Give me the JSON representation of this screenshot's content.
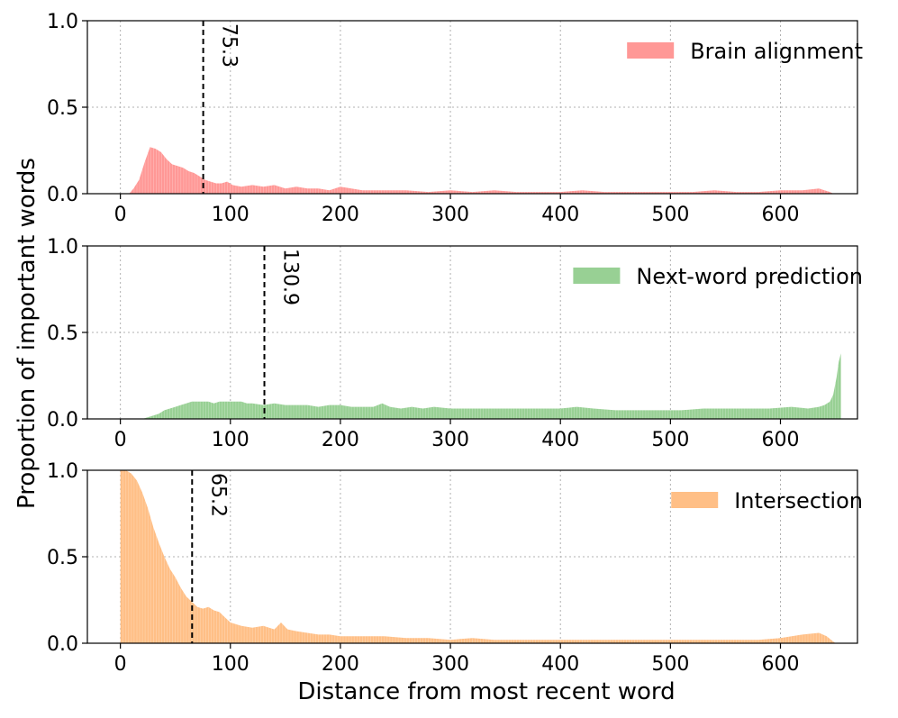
{
  "figure": {
    "xlabel": "Distance from most recent word",
    "ylabel": "Proportion of important words"
  },
  "chart_data": [
    {
      "type": "area",
      "legend": "Brain alignment",
      "legend_position": "top-right",
      "color": "#ff9896",
      "xlim": [
        -30,
        670
      ],
      "ylim": [
        0,
        1.0
      ],
      "x_ticks": [
        0,
        100,
        200,
        300,
        400,
        500,
        600
      ],
      "y_ticks": [
        0.0,
        0.5,
        1.0
      ],
      "y_tick_labels": [
        "0.0",
        "0.5",
        "1.0"
      ],
      "grid": true,
      "vline": {
        "x": 75.3,
        "label": "75.3"
      },
      "points": [
        [
          0,
          0
        ],
        [
          8,
          0
        ],
        [
          12,
          0.03
        ],
        [
          17,
          0.08
        ],
        [
          22,
          0.18
        ],
        [
          27,
          0.27
        ],
        [
          32,
          0.26
        ],
        [
          37,
          0.24
        ],
        [
          42,
          0.2
        ],
        [
          47,
          0.17
        ],
        [
          52,
          0.16
        ],
        [
          57,
          0.15
        ],
        [
          62,
          0.13
        ],
        [
          67,
          0.12
        ],
        [
          72,
          0.1
        ],
        [
          77,
          0.08
        ],
        [
          82,
          0.07
        ],
        [
          87,
          0.06
        ],
        [
          92,
          0.06
        ],
        [
          97,
          0.07
        ],
        [
          102,
          0.05
        ],
        [
          110,
          0.04
        ],
        [
          120,
          0.05
        ],
        [
          130,
          0.04
        ],
        [
          140,
          0.05
        ],
        [
          150,
          0.03
        ],
        [
          160,
          0.04
        ],
        [
          170,
          0.03
        ],
        [
          180,
          0.03
        ],
        [
          190,
          0.02
        ],
        [
          200,
          0.04
        ],
        [
          210,
          0.03
        ],
        [
          220,
          0.02
        ],
        [
          230,
          0.02
        ],
        [
          240,
          0.02
        ],
        [
          260,
          0.02
        ],
        [
          280,
          0.01
        ],
        [
          300,
          0.02
        ],
        [
          320,
          0.01
        ],
        [
          340,
          0.02
        ],
        [
          360,
          0.01
        ],
        [
          380,
          0.01
        ],
        [
          400,
          0.01
        ],
        [
          420,
          0.02
        ],
        [
          440,
          0.01
        ],
        [
          460,
          0.01
        ],
        [
          480,
          0.01
        ],
        [
          500,
          0.01
        ],
        [
          520,
          0.01
        ],
        [
          540,
          0.02
        ],
        [
          560,
          0.01
        ],
        [
          580,
          0.01
        ],
        [
          600,
          0.02
        ],
        [
          620,
          0.02
        ],
        [
          635,
          0.03
        ],
        [
          640,
          0.02
        ],
        [
          645,
          0.01
        ],
        [
          648,
          0
        ]
      ]
    },
    {
      "type": "area",
      "legend": "Next-word prediction",
      "legend_position": "top-right",
      "color": "#98d094",
      "xlim": [
        -30,
        670
      ],
      "ylim": [
        0,
        1.0
      ],
      "x_ticks": [
        0,
        100,
        200,
        300,
        400,
        500,
        600
      ],
      "y_ticks": [
        0.0,
        0.5,
        1.0
      ],
      "y_tick_labels": [
        "0.0",
        "0.5",
        "1.0"
      ],
      "grid": true,
      "vline": {
        "x": 130.9,
        "label": "130.9"
      },
      "points": [
        [
          0,
          0
        ],
        [
          20,
          0
        ],
        [
          25,
          0.01
        ],
        [
          30,
          0.02
        ],
        [
          35,
          0.03
        ],
        [
          40,
          0.05
        ],
        [
          45,
          0.06
        ],
        [
          50,
          0.07
        ],
        [
          55,
          0.08
        ],
        [
          60,
          0.09
        ],
        [
          65,
          0.1
        ],
        [
          70,
          0.1
        ],
        [
          75,
          0.1
        ],
        [
          80,
          0.1
        ],
        [
          85,
          0.09
        ],
        [
          90,
          0.1
        ],
        [
          95,
          0.1
        ],
        [
          100,
          0.1
        ],
        [
          105,
          0.1
        ],
        [
          110,
          0.1
        ],
        [
          115,
          0.09
        ],
        [
          120,
          0.09
        ],
        [
          130,
          0.08
        ],
        [
          140,
          0.09
        ],
        [
          150,
          0.08
        ],
        [
          160,
          0.08
        ],
        [
          170,
          0.08
        ],
        [
          180,
          0.07
        ],
        [
          190,
          0.08
        ],
        [
          200,
          0.08
        ],
        [
          210,
          0.07
        ],
        [
          220,
          0.07
        ],
        [
          230,
          0.07
        ],
        [
          238,
          0.09
        ],
        [
          245,
          0.07
        ],
        [
          255,
          0.06
        ],
        [
          265,
          0.07
        ],
        [
          275,
          0.06
        ],
        [
          285,
          0.07
        ],
        [
          300,
          0.06
        ],
        [
          320,
          0.06
        ],
        [
          340,
          0.06
        ],
        [
          360,
          0.06
        ],
        [
          380,
          0.06
        ],
        [
          400,
          0.06
        ],
        [
          415,
          0.07
        ],
        [
          430,
          0.06
        ],
        [
          450,
          0.05
        ],
        [
          470,
          0.05
        ],
        [
          490,
          0.05
        ],
        [
          510,
          0.05
        ],
        [
          530,
          0.06
        ],
        [
          550,
          0.06
        ],
        [
          570,
          0.06
        ],
        [
          590,
          0.06
        ],
        [
          610,
          0.07
        ],
        [
          625,
          0.06
        ],
        [
          635,
          0.07
        ],
        [
          640,
          0.08
        ],
        [
          645,
          0.1
        ],
        [
          648,
          0.14
        ],
        [
          651,
          0.24
        ],
        [
          653,
          0.33
        ],
        [
          655,
          0.38
        ]
      ]
    },
    {
      "type": "area",
      "legend": "Intersection",
      "legend_position": "top-right",
      "color": "#ffbf86",
      "xlim": [
        -30,
        670
      ],
      "ylim": [
        0,
        1.0
      ],
      "x_ticks": [
        0,
        100,
        200,
        300,
        400,
        500,
        600
      ],
      "y_ticks": [
        0.0,
        0.5,
        1.0
      ],
      "y_tick_labels": [
        "0.0",
        "0.5",
        "1.0"
      ],
      "grid": true,
      "vline": {
        "x": 65.2,
        "label": "65.2"
      },
      "points": [
        [
          0,
          1.0
        ],
        [
          5,
          1.0
        ],
        [
          10,
          0.98
        ],
        [
          15,
          0.94
        ],
        [
          20,
          0.87
        ],
        [
          25,
          0.78
        ],
        [
          30,
          0.67
        ],
        [
          35,
          0.58
        ],
        [
          40,
          0.5
        ],
        [
          45,
          0.43
        ],
        [
          50,
          0.38
        ],
        [
          55,
          0.32
        ],
        [
          60,
          0.27
        ],
        [
          65,
          0.24
        ],
        [
          70,
          0.21
        ],
        [
          75,
          0.2
        ],
        [
          80,
          0.21
        ],
        [
          85,
          0.19
        ],
        [
          90,
          0.18
        ],
        [
          95,
          0.15
        ],
        [
          100,
          0.12
        ],
        [
          105,
          0.11
        ],
        [
          110,
          0.1
        ],
        [
          120,
          0.09
        ],
        [
          130,
          0.1
        ],
        [
          140,
          0.08
        ],
        [
          146,
          0.12
        ],
        [
          152,
          0.08
        ],
        [
          160,
          0.07
        ],
        [
          170,
          0.06
        ],
        [
          180,
          0.05
        ],
        [
          190,
          0.05
        ],
        [
          200,
          0.04
        ],
        [
          220,
          0.04
        ],
        [
          240,
          0.04
        ],
        [
          260,
          0.03
        ],
        [
          280,
          0.03
        ],
        [
          300,
          0.02
        ],
        [
          320,
          0.03
        ],
        [
          340,
          0.02
        ],
        [
          360,
          0.02
        ],
        [
          380,
          0.02
        ],
        [
          400,
          0.02
        ],
        [
          420,
          0.02
        ],
        [
          440,
          0.02
        ],
        [
          460,
          0.02
        ],
        [
          480,
          0.02
        ],
        [
          500,
          0.02
        ],
        [
          520,
          0.02
        ],
        [
          540,
          0.02
        ],
        [
          560,
          0.02
        ],
        [
          580,
          0.02
        ],
        [
          600,
          0.03
        ],
        [
          620,
          0.05
        ],
        [
          635,
          0.06
        ],
        [
          642,
          0.04
        ],
        [
          646,
          0.02
        ],
        [
          650,
          0
        ]
      ]
    }
  ]
}
